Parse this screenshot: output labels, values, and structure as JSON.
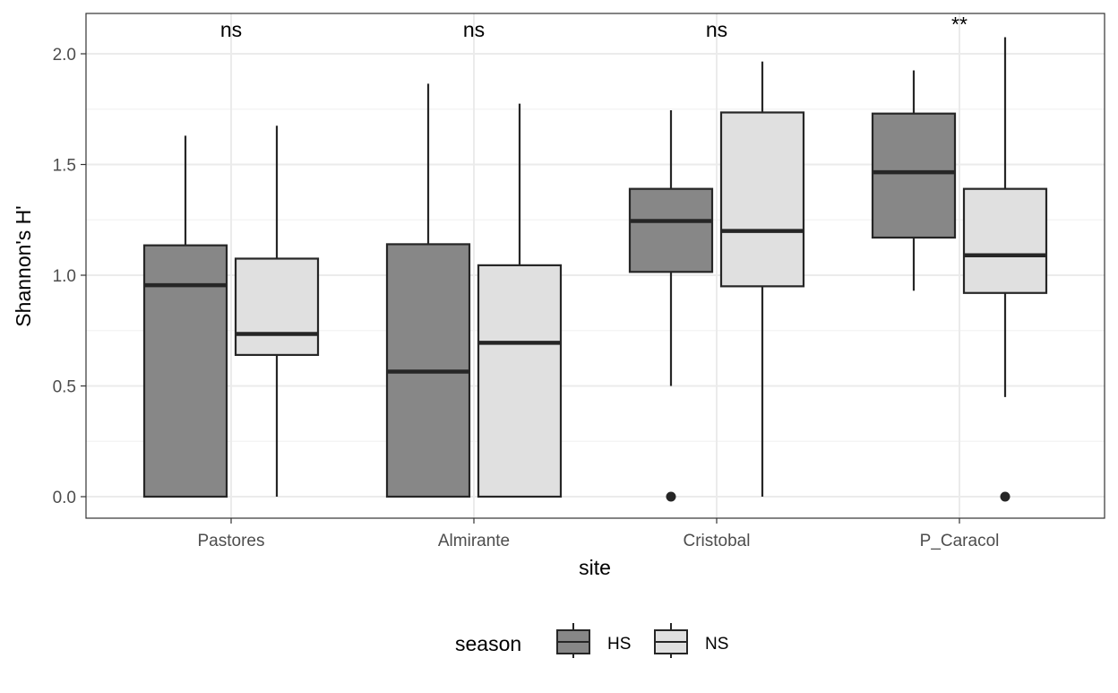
{
  "chart_data": {
    "type": "boxplot",
    "title": "",
    "xlabel": "site",
    "ylabel": "Shannon's H'",
    "ylim": [
      -0.1,
      2.18
    ],
    "y_ticks": [
      0.0,
      0.5,
      1.0,
      1.5,
      2.0
    ],
    "y_tick_labels": [
      "0.0",
      "0.5",
      "1.0",
      "1.5",
      "2.0"
    ],
    "minor_y_gridlines": [
      0.25,
      0.75,
      1.25,
      1.75
    ],
    "grid": true,
    "theme": "bw",
    "categories": [
      "Pastores",
      "Almirante",
      "Cristobal",
      "P_Caracol"
    ],
    "significance": [
      "ns",
      "ns",
      "ns",
      "**"
    ],
    "legend": {
      "title": "season",
      "position": "bottom",
      "entries": [
        "HS",
        "NS"
      ]
    },
    "series": [
      {
        "name": "HS",
        "color": "#878787",
        "boxes": [
          {
            "whisker_low": 0.0,
            "q1": 0.0,
            "median": 0.955,
            "q3": 1.135,
            "whisker_high": 1.63,
            "outliers": []
          },
          {
            "whisker_low": 0.0,
            "q1": 0.0,
            "median": 0.565,
            "q3": 1.14,
            "whisker_high": 1.865,
            "outliers": []
          },
          {
            "whisker_low": 0.5,
            "q1": 1.015,
            "median": 1.245,
            "q3": 1.39,
            "whisker_high": 1.745,
            "outliers": [
              0.0
            ]
          },
          {
            "whisker_low": 0.93,
            "q1": 1.17,
            "median": 1.465,
            "q3": 1.73,
            "whisker_high": 1.925,
            "outliers": []
          }
        ]
      },
      {
        "name": "NS",
        "color": "#e0e0e0",
        "boxes": [
          {
            "whisker_low": 0.0,
            "q1": 0.64,
            "median": 0.735,
            "q3": 1.075,
            "whisker_high": 1.675,
            "outliers": []
          },
          {
            "whisker_low": 0.0,
            "q1": 0.0,
            "median": 0.695,
            "q3": 1.045,
            "whisker_high": 1.775,
            "outliers": []
          },
          {
            "whisker_low": 0.0,
            "q1": 0.95,
            "median": 1.2,
            "q3": 1.735,
            "whisker_high": 1.965,
            "outliers": []
          },
          {
            "whisker_low": 0.45,
            "q1": 0.92,
            "median": 1.09,
            "q3": 1.39,
            "whisker_high": 2.075,
            "outliers": [
              0.0
            ]
          }
        ]
      }
    ],
    "colors": {
      "panel_border": "#333333",
      "grid_major": "#ebebeb",
      "grid_minor": "#f2f2f2",
      "box_stroke": "#262626",
      "tick_label": "#4d4d4d",
      "text": "#000000"
    }
  }
}
